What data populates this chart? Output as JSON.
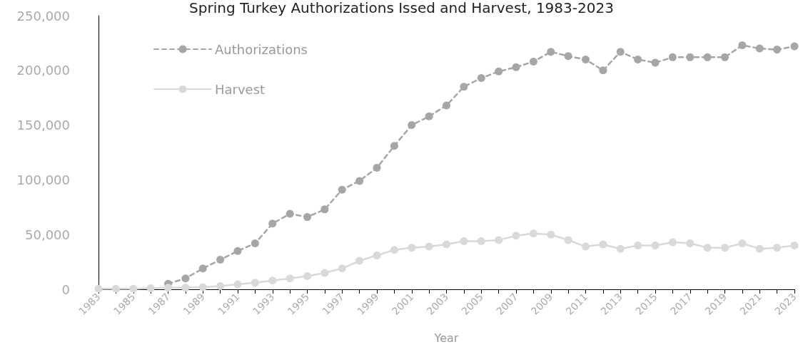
{
  "chart_data": {
    "type": "line",
    "title": "Spring Turkey Authorizations Issed and Harvest, 1983-2023",
    "xlabel": "Year",
    "x": [
      1983,
      1984,
      1985,
      1986,
      1987,
      1988,
      1989,
      1990,
      1991,
      1992,
      1993,
      1994,
      1995,
      1996,
      1997,
      1998,
      1999,
      2000,
      2001,
      2002,
      2003,
      2004,
      2005,
      2006,
      2007,
      2008,
      2009,
      2010,
      2011,
      2012,
      2013,
      2014,
      2015,
      2016,
      2017,
      2018,
      2019,
      2020,
      2021,
      2022,
      2023
    ],
    "series": [
      {
        "name": "Authorizations",
        "color": "#a6a6a6",
        "line_style": "dashed",
        "values": [
          null,
          null,
          null,
          null,
          5000,
          10000,
          19000,
          27000,
          35000,
          42000,
          60000,
          69000,
          66000,
          73000,
          91000,
          99000,
          111000,
          131000,
          150000,
          158000,
          168000,
          185000,
          193000,
          199000,
          203000,
          208000,
          217000,
          213000,
          210000,
          200000,
          217000,
          210000,
          207000,
          212000,
          212000,
          212000,
          212000,
          223000,
          220000,
          219000,
          222000
        ]
      },
      {
        "name": "Harvest",
        "color": "#d9d9d9",
        "line_style": "solid",
        "values": [
          500,
          500,
          500,
          1000,
          1500,
          1500,
          2000,
          3000,
          4500,
          6000,
          8000,
          10000,
          12000,
          15000,
          19000,
          26000,
          31000,
          36000,
          38000,
          39000,
          41000,
          44000,
          44000,
          45000,
          49000,
          51000,
          50000,
          45000,
          39000,
          41000,
          37000,
          40000,
          40000,
          43000,
          42000,
          38000,
          38000,
          42000,
          37000,
          38000,
          40000
        ]
      }
    ],
    "xlim": [
      1983,
      2023
    ],
    "xticks": [
      1983,
      {
        "value": 1984,
        "label": null
      },
      1985,
      {
        "value": 1986,
        "label": null
      },
      1987,
      {
        "value": 1988,
        "label": null
      },
      1989,
      {
        "value": 1990,
        "label": null
      },
      1991,
      {
        "value": 1992,
        "label": null
      },
      1993,
      {
        "value": 1994,
        "label": null
      },
      1995,
      {
        "value": 1996,
        "label": null
      },
      1997,
      {
        "value": 1998,
        "label": null
      },
      1999,
      {
        "value": 2000,
        "label": null
      },
      2001,
      {
        "value": 2002,
        "label": null
      },
      2003,
      {
        "value": 2004,
        "label": null
      },
      2005,
      {
        "value": 2006,
        "label": null
      },
      2007,
      {
        "value": 2008,
        "label": null
      },
      2009,
      {
        "value": 2010,
        "label": null
      },
      2011,
      {
        "value": 2012,
        "label": null
      },
      2013,
      {
        "value": 2014,
        "label": null
      },
      2015,
      {
        "value": 2016,
        "label": null
      },
      2017,
      {
        "value": 2018,
        "label": null
      },
      2019,
      {
        "value": 2020,
        "label": null
      },
      2021,
      {
        "value": 2022,
        "label": null
      },
      2023
    ],
    "ylim": [
      0,
      250000
    ],
    "yticks": [
      {
        "value": 0,
        "label": "0"
      },
      {
        "value": 50000,
        "label": "50,000"
      },
      {
        "value": 100000,
        "label": "100,000"
      },
      {
        "value": 150000,
        "label": "150,000"
      },
      {
        "value": 200000,
        "label": "200,000"
      },
      {
        "value": 250000,
        "label": "250,000"
      }
    ],
    "grid": false,
    "legend": "top left",
    "marker": "circle"
  }
}
